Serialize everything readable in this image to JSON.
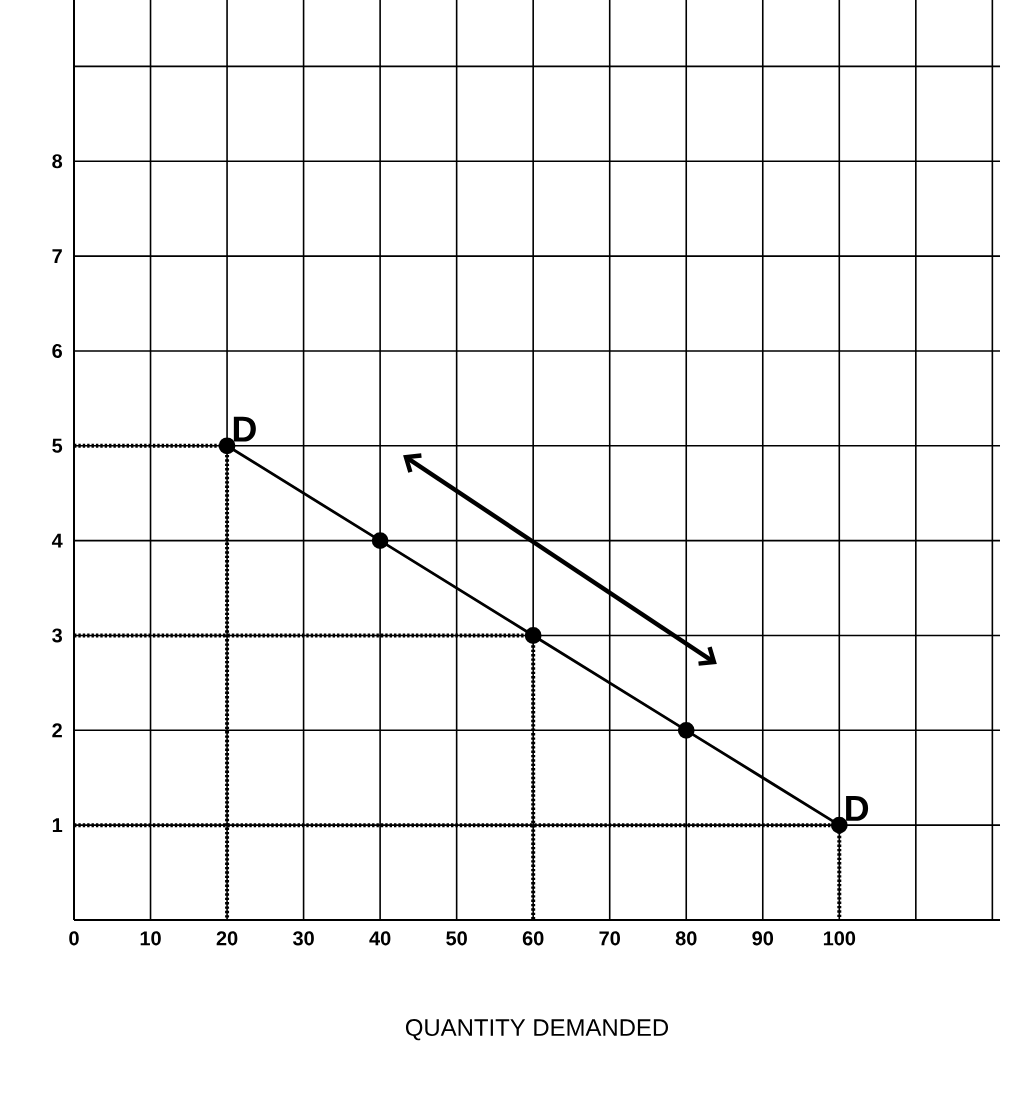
{
  "chart_data": {
    "type": "line",
    "xlabel": "QUANTITY DEMANDED",
    "x": [
      20,
      40,
      60,
      80,
      100
    ],
    "series": [
      {
        "color": "#000000",
        "values": [
          5,
          4,
          3,
          2,
          1
        ],
        "marker": "circle",
        "line_style": "solid"
      },
      {
        "color": "#000000",
        "x": [
          0,
          20,
          20
        ],
        "values": [
          5,
          5,
          0
        ],
        "marker": "none",
        "line_style": "dotted"
      },
      {
        "color": "#000000",
        "x": [
          0,
          60,
          60
        ],
        "values": [
          3,
          3,
          0
        ],
        "marker": "none",
        "line_style": "dotted"
      },
      {
        "color": "#000000",
        "x": [
          0,
          100,
          100
        ],
        "values": [
          1,
          1,
          0
        ],
        "marker": "none",
        "line_style": "dotted"
      }
    ],
    "annotations": [
      {
        "text": "D",
        "x": 20,
        "y": 5
      },
      {
        "text": "D",
        "x": 100,
        "y": 1
      }
    ],
    "xlim": [
      0,
      121
    ],
    "ylim": [
      0,
      9.7
    ],
    "xticks": [
      0,
      10,
      20,
      30,
      40,
      50,
      60,
      70,
      80,
      90,
      100,
      {
        "value": 110,
        "label": null
      },
      {
        "value": 120,
        "label": null
      }
    ],
    "yticks": [
      1,
      2,
      3,
      4,
      5,
      6,
      7,
      8,
      {
        "value": 9,
        "label": null
      }
    ],
    "grid": true
  }
}
